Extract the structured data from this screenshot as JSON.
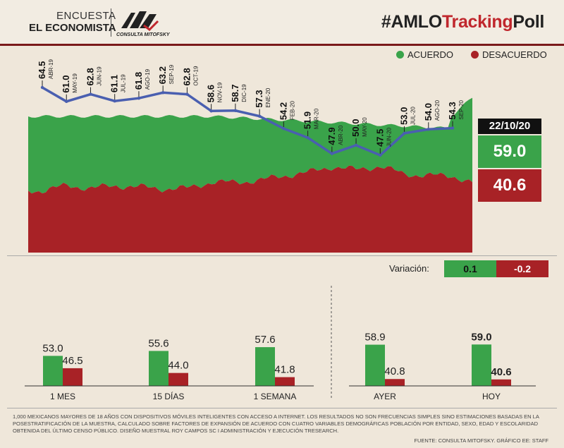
{
  "header": {
    "brand_line1": "ENCUESTA",
    "brand_line2": "EL ECONOMISTA",
    "partner": "CONSULTA MITOFSKY",
    "title_part1": "#AMLO",
    "title_part2": "Tracking",
    "title_part3": "Poll"
  },
  "legend": {
    "agree": "ACUERDO",
    "disagree": "DESACUERDO"
  },
  "colors": {
    "agree": "#3aa34a",
    "disagree": "#a82226",
    "line": "#4a5fb0"
  },
  "latest": {
    "date": "22/10/20",
    "agree": "59.0",
    "disagree": "40.6"
  },
  "variation": {
    "label": "Variación:",
    "agree": "0.1",
    "disagree": "-0.2"
  },
  "chart_data": [
    {
      "type": "line",
      "x": [
        "ABR-19",
        "MAY-19",
        "JUN-19",
        "JUL-19",
        "AGO-19",
        "SEP-19",
        "OCT-19",
        "NOV-19",
        "DIC-19",
        "ENE-20",
        "FEB-20",
        "MAR-20",
        "ABR-20",
        "MAY-20",
        "JUN-20",
        "JUL-20",
        "AGO-20",
        "SEP-20"
      ],
      "series": [
        {
          "values": [
            64.5,
            61.0,
            62.8,
            61.1,
            61.8,
            63.2,
            62.8,
            58.6,
            58.7,
            57.3,
            54.2,
            51.9,
            47.9,
            50.0,
            47.5,
            53.0,
            54.0,
            54.3
          ]
        }
      ]
    },
    {
      "type": "bar",
      "categories": [
        "1 MES",
        "15 DÍAS",
        "1 SEMANA",
        "AYER",
        "HOY"
      ],
      "series": [
        {
          "name": "ACUERDO",
          "values": [
            53.0,
            55.6,
            57.6,
            58.9,
            59.0
          ]
        },
        {
          "name": "DESACUERDO",
          "values": [
            46.5,
            44.0,
            41.8,
            40.8,
            40.6
          ]
        }
      ]
    }
  ],
  "footnote": "1,000 mexicanos mayores de 18 años con dispositivos móviles inteligentes con acceso a internet. Los resultados no son frecuencias simples sino estimaciones basadas en la posestratificación de la muestra, calculado sobre factores de expansión de acuerdo con cuatro variables demográficas población por entidad, sexo, edad y escolaridad obtenida del último censo público. Diseño muestral Roy Campos SC I Administración y ejecución Tresearch.",
  "source": "FUENTE: CONSULTA MITOFSKY. GRÁFICO EE: STAFF"
}
